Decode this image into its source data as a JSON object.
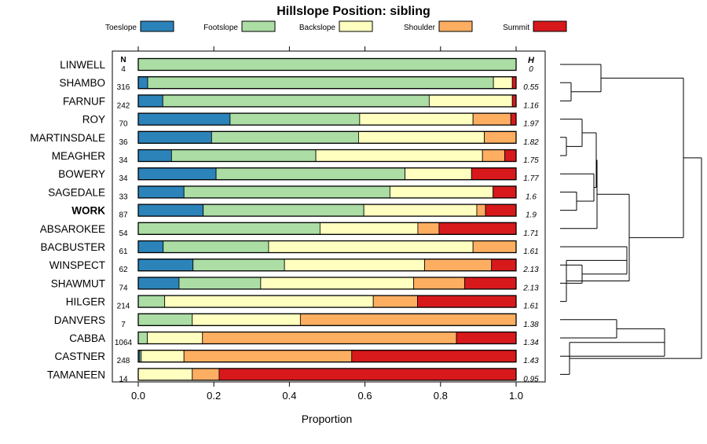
{
  "chart_data": {
    "type": "bar",
    "orientation": "horizontal",
    "stacked": true,
    "title": "Hillslope Position: sibling",
    "xlabel": "Proportion",
    "ylabel": "",
    "xlim": [
      0,
      1
    ],
    "xticks": [
      "0.0",
      "0.2",
      "0.4",
      "0.6",
      "0.8",
      "1.0"
    ],
    "xtick_values": [
      0,
      0.2,
      0.4,
      0.6,
      0.8,
      1.0
    ],
    "n_header": "N",
    "h_header": "H",
    "highlight": "WORK",
    "legend_position": "top",
    "series": [
      {
        "name": "Toeslope",
        "color": "#2b83ba"
      },
      {
        "name": "Footslope",
        "color": "#abdda4"
      },
      {
        "name": "Backslope",
        "color": "#ffffbf"
      },
      {
        "name": "Shoulder",
        "color": "#fdae61"
      },
      {
        "name": "Summit",
        "color": "#d7191c"
      }
    ],
    "rows": [
      {
        "name": "LINWELL",
        "n": "4",
        "h": "0",
        "values": [
          0,
          1.0,
          0,
          0,
          0
        ]
      },
      {
        "name": "SHAMBO",
        "n": "316",
        "h": "0.55",
        "values": [
          0.025,
          0.915,
          0.05,
          0,
          0.01
        ]
      },
      {
        "name": "FARNUF",
        "n": "242",
        "h": "1.16",
        "values": [
          0.065,
          0.705,
          0.22,
          0,
          0.01
        ]
      },
      {
        "name": "ROY",
        "n": "70",
        "h": "1.97",
        "values": [
          0.243,
          0.343,
          0.3,
          0.1,
          0.014
        ]
      },
      {
        "name": "MARTINSDALE",
        "n": "36",
        "h": "1.82",
        "values": [
          0.194,
          0.389,
          0.333,
          0.084,
          0
        ]
      },
      {
        "name": "MEAGHER",
        "n": "34",
        "h": "1.75",
        "values": [
          0.088,
          0.382,
          0.441,
          0.059,
          0.03
        ]
      },
      {
        "name": "BOWERY",
        "n": "34",
        "h": "1.77",
        "values": [
          0.206,
          0.5,
          0.176,
          0,
          0.118
        ]
      },
      {
        "name": "SAGEDALE",
        "n": "33",
        "h": "1.6",
        "values": [
          0.121,
          0.545,
          0.273,
          0,
          0.061
        ]
      },
      {
        "name": "WORK",
        "n": "87",
        "h": "1.9",
        "values": [
          0.172,
          0.425,
          0.299,
          0.023,
          0.081
        ]
      },
      {
        "name": "ABSAROKEE",
        "n": "54",
        "h": "1.71",
        "values": [
          0,
          0.481,
          0.259,
          0.056,
          0.204
        ]
      },
      {
        "name": "BACBUSTER",
        "n": "61",
        "h": "1.61",
        "values": [
          0.066,
          0.279,
          0.541,
          0.114,
          0
        ]
      },
      {
        "name": "WINSPECT",
        "n": "62",
        "h": "2.13",
        "values": [
          0.145,
          0.242,
          0.371,
          0.177,
          0.065
        ]
      },
      {
        "name": "SHAWMUT",
        "n": "74",
        "h": "2.13",
        "values": [
          0.108,
          0.216,
          0.405,
          0.135,
          0.136
        ]
      },
      {
        "name": "HILGER",
        "n": "214",
        "h": "1.61",
        "values": [
          0,
          0.07,
          0.552,
          0.117,
          0.261
        ]
      },
      {
        "name": "DANVERS",
        "n": "7",
        "h": "1.38",
        "values": [
          0,
          0.143,
          0.286,
          0.571,
          0
        ]
      },
      {
        "name": "CABBA",
        "n": "1064",
        "h": "1.34",
        "values": [
          0,
          0.024,
          0.146,
          0.672,
          0.158
        ]
      },
      {
        "name": "CASTNER",
        "n": "248",
        "h": "1.43",
        "values": [
          0.004,
          0.004,
          0.113,
          0.444,
          0.435
        ]
      },
      {
        "name": "TAMANEEN",
        "n": "14",
        "h": "0.95",
        "values": [
          0,
          0,
          0.143,
          0.071,
          0.786
        ]
      }
    ],
    "dendrogram": {
      "description": "hierarchical clustering of series by hillslope position proportions",
      "tree": [
        [
          [
            "LINWELL",
            [
              "SHAMBO",
              "FARNUF"
            ]
          ],
          [
            [
              [
                [
                  "ROY",
                  [
                    "MARTINSDALE",
                    "MEAGHER"
                  ]
                ],
                [
                  "BOWERY",
                  [
                    "SAGEDALE",
                    "WORK"
                  ]
                ]
              ],
              "ABSAROKEE"
            ],
            [
              [
                "BACBUSTER",
                [
                  "WINSPECT",
                  "SHAWMUT"
                ]
              ],
              "HILGER"
            ]
          ]
        ],
        [
          [
            [
              "DANVERS",
              "CABBA"
            ],
            "CASTNER"
          ],
          "TAMANEEN"
        ]
      ]
    }
  }
}
